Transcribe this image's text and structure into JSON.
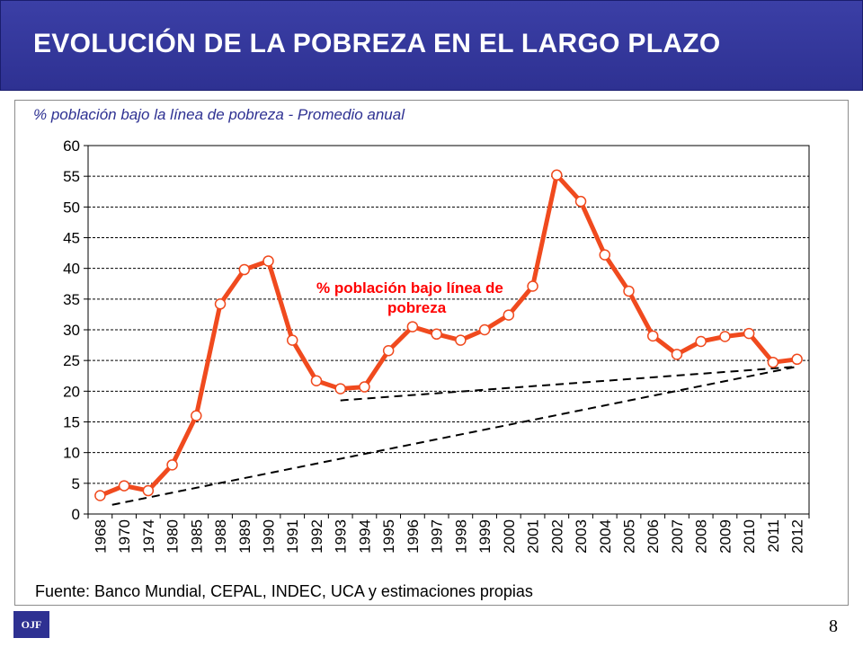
{
  "slide": {
    "title": "EVOLUCIÓN DE LA POBREZA EN EL LARGO PLAZO",
    "page_number": "8",
    "logo_text": "OJF"
  },
  "chart_data": {
    "type": "line",
    "subtitle": "% población bajo la línea de pobreza - Promedio anual",
    "annotation": "% población bajo línea de pobreza",
    "annotation_lines": [
      "% población bajo línea de",
      "pobreza"
    ],
    "source": "Fuente: Banco Mundial, CEPAL,  INDEC, UCA y estimaciones propias",
    "categories": [
      "1968",
      "1970",
      "1974",
      "1980",
      "1985",
      "1988",
      "1989",
      "1990",
      "1991",
      "1992",
      "1993",
      "1994",
      "1995",
      "1996",
      "1997",
      "1998",
      "1999",
      "2000",
      "2001",
      "2002",
      "2003",
      "2004",
      "2005",
      "2006",
      "2007",
      "2008",
      "2009",
      "2010",
      "2011",
      "2012"
    ],
    "series": [
      {
        "values": [
          3.0,
          4.6,
          3.8,
          8.0,
          16.0,
          34.2,
          39.8,
          41.2,
          28.3,
          21.7,
          20.4,
          20.7,
          26.6,
          30.5,
          29.3,
          28.3,
          30.0,
          32.4,
          37.1,
          55.2,
          50.9,
          42.2,
          36.3,
          29.0,
          26.0,
          28.1,
          28.9,
          29.4,
          24.7,
          25.2
        ],
        "color": "#f04a1e"
      }
    ],
    "trend_lines": [
      {
        "from_index": 0.5,
        "from_value": 1.5,
        "to_index": 29,
        "to_value": 24.0
      },
      {
        "from_index": 10,
        "from_value": 18.5,
        "to_index": 29,
        "to_value": 24.0
      }
    ],
    "ylim": [
      0,
      60
    ],
    "yticks": [
      0,
      5,
      10,
      15,
      20,
      25,
      30,
      35,
      40,
      45,
      50,
      55,
      60
    ],
    "grid": true,
    "annotation_color": "#ff0000"
  }
}
